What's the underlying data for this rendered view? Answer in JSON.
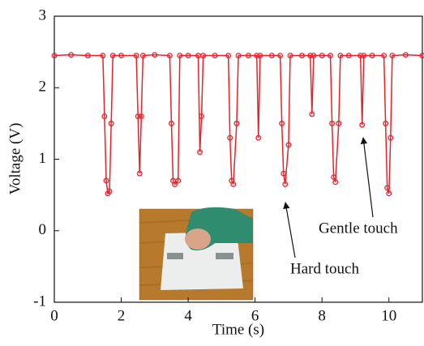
{
  "chart_data": {
    "type": "line",
    "x_label": "Time (s)",
    "y_label": "Voltage (V)",
    "xlim": [
      0,
      11
    ],
    "xticks": [
      0,
      2,
      4,
      6,
      8,
      10
    ],
    "ylim": [
      -1,
      3
    ],
    "yticks": [
      -1,
      0,
      1,
      2,
      3
    ],
    "series": [
      {
        "color": "#e8222a",
        "x": [
          0,
          0.5,
          1.0,
          1.45,
          1.5,
          1.55,
          1.6,
          1.65,
          1.7,
          1.75,
          2.0,
          2.45,
          2.5,
          2.55,
          2.6,
          2.65,
          3.0,
          3.45,
          3.5,
          3.55,
          3.6,
          3.7,
          3.75,
          4.0,
          4.3,
          4.35,
          4.4,
          4.45,
          4.8,
          5.2,
          5.25,
          5.3,
          5.35,
          5.45,
          5.5,
          5.8,
          6.05,
          6.1,
          6.15,
          6.5,
          6.75,
          6.8,
          6.85,
          6.9,
          7.0,
          7.05,
          7.4,
          7.65,
          7.7,
          7.75,
          8.0,
          8.25,
          8.3,
          8.35,
          8.4,
          8.5,
          8.55,
          8.8,
          9.15,
          9.2,
          9.25,
          9.5,
          9.85,
          9.9,
          9.95,
          10.0,
          10.05,
          10.1,
          10.5,
          11
        ],
        "values": [
          2.45,
          2.46,
          2.45,
          2.45,
          1.6,
          0.7,
          0.52,
          0.55,
          1.5,
          2.45,
          2.45,
          2.45,
          1.6,
          0.8,
          1.6,
          2.45,
          2.46,
          2.45,
          1.5,
          0.7,
          0.65,
          0.7,
          2.45,
          2.45,
          2.45,
          1.1,
          1.6,
          2.45,
          2.45,
          2.45,
          1.3,
          0.7,
          0.65,
          1.5,
          2.45,
          2.45,
          2.45,
          1.3,
          2.45,
          2.45,
          2.45,
          1.5,
          0.8,
          0.65,
          1.2,
          2.45,
          2.45,
          2.45,
          1.63,
          2.45,
          2.45,
          2.45,
          1.5,
          0.75,
          0.68,
          1.5,
          2.45,
          2.45,
          2.45,
          1.48,
          2.45,
          2.45,
          2.45,
          1.5,
          0.6,
          0.52,
          1.3,
          2.45,
          2.46,
          2.45
        ]
      }
    ],
    "annotations": [
      {
        "text": "Hard touch"
      },
      {
        "text": "Gentle touch"
      }
    ]
  }
}
